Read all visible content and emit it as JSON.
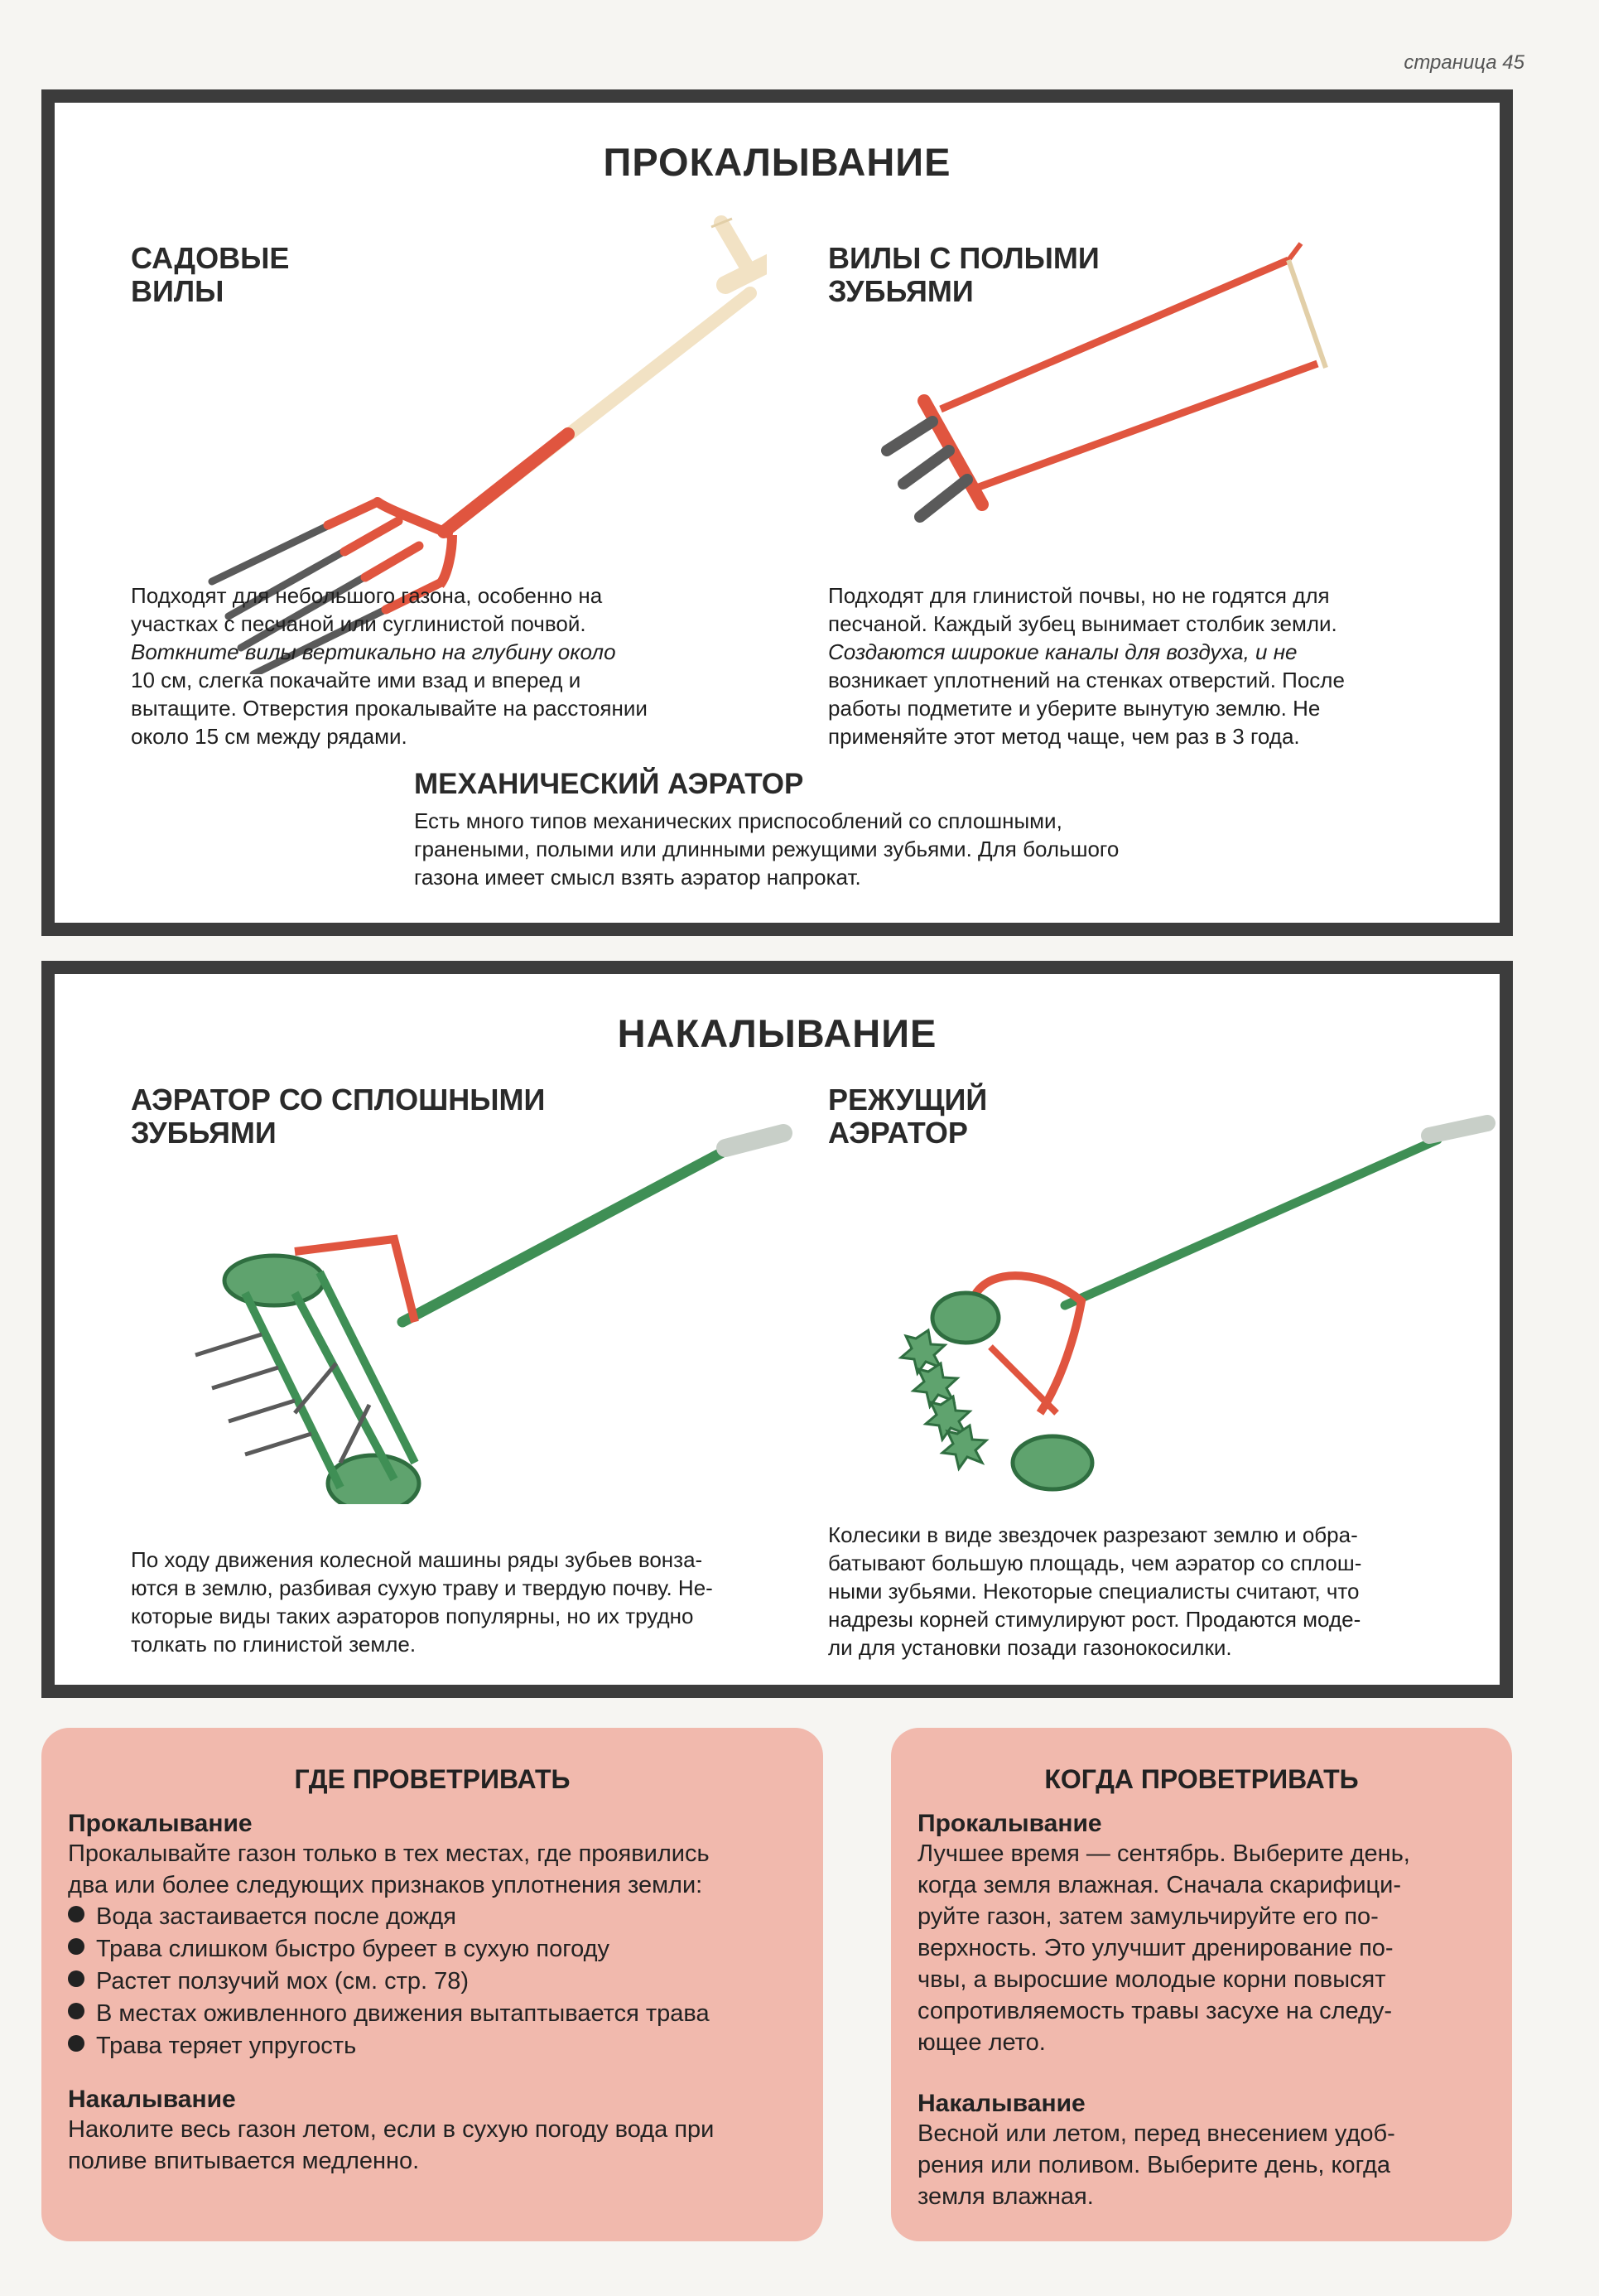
{
  "page_number": "страница 45",
  "piercing": {
    "title": "ПРОКАЛЫВАНИЕ",
    "garden_fork": {
      "title_line1": "САДОВЫЕ",
      "title_line2": "ВИЛЫ",
      "lines": [
        "Подходят для небольшого газона, особенно на",
        "участках с песчаной или суглинистой почвой.",
        "Воткните вилы вертикально на глубину около",
        "10 см, слегка покачайте ими взад и вперед и",
        "вытащите. Отверстия прокалывайте на расстоянии",
        "около 15 см между рядами."
      ]
    },
    "hollow_fork": {
      "title_line1": "ВИЛЫ С ПОЛЫМИ",
      "title_line2": "ЗУБЬЯМИ",
      "lines": [
        "Подходят для глинистой почвы, но не годятся для",
        "песчаной. Каждый зубец вынимает столбик земли.",
        "Создаются широкие каналы для воздуха, и не",
        "возникает уплотнений на стенках отверстий. После",
        "работы подметите и уберите вынутую землю. Не",
        "применяйте этот метод чаще, чем раз в 3 года."
      ]
    },
    "mechanical": {
      "title": "МЕХАНИЧЕСКИЙ АЭРАТОР",
      "lines": [
        "Есть много типов механических приспособлений со сплошными,",
        "гранеными, полыми или длинными режущими зубьями. Для большого",
        "газона имеет смысл взять аэратор напрокат."
      ]
    }
  },
  "spiking": {
    "title": "НАКАЛЫВАНИЕ",
    "solid_aerator": {
      "title_line1": "АЭРАТОР СО СПЛОШНЫМИ",
      "title_line2": "ЗУБЬЯМИ",
      "lines": [
        "По ходу движения колесной машины ряды зубьев вонза-",
        "ются в землю, разбивая сухую траву и твердую почву. Не-",
        "которые виды таких аэраторов популярны, но их трудно",
        "толкать по глинистой земле."
      ]
    },
    "cutting_aerator": {
      "title_line1": "РЕЖУЩИЙ",
      "title_line2": "АЭРАТОР",
      "lines": [
        "Колесики в виде звездочек разрезают землю и обра-",
        "батывают большую площадь, чем аэратор со сплош-",
        "ными зубьями. Некоторые специалисты считают, что",
        "надрезы корней стимулируют рост. Продаются моде-",
        "ли для установки позади газонокосилки."
      ]
    }
  },
  "where": {
    "title": "ГДЕ ПРОВЕТРИВАТЬ",
    "sub1": "Прокалывание",
    "text1_lines": [
      "Прокалывайте газон только в тех местах, где проявились",
      "два или более следующих признаков уплотнения земли:"
    ],
    "bullets": [
      "Вода застаивается после дождя",
      "Трава слишком быстро буреет в сухую погоду",
      "Растет ползучий мох (см. стр. 78)",
      "В местах оживленного движения вытаптывается трава",
      "Трава теряет упругость"
    ],
    "sub2": "Накалывание",
    "text2_lines": [
      "Наколите весь газон летом, если в сухую погоду вода при",
      "поливе впитывается медленно."
    ]
  },
  "when": {
    "title": "КОГДА ПРОВЕТРИВАТЬ",
    "sub1": "Прокалывание",
    "text1_lines": [
      "Лучшее время — сентябрь. Выберите день,",
      "когда земля влажная. Сначала скарифици-",
      "руйте газон, затем замульчируйте его по-",
      "верхность. Это улучшит дренирование по-",
      "чвы, а выросшие молодые корни повысят",
      "сопротивляемость травы засухе на следу-",
      "ющее лето."
    ],
    "sub2": "Накалывание",
    "text2_lines": [
      "Весной или летом, перед внесением удоб-",
      "рения или поливом. Выберите день, когда",
      "земля влажная."
    ]
  },
  "colors": {
    "frame": "#3c3c3c",
    "info_bg": "#f1b9ad",
    "tool_red": "#e0553f",
    "tool_green": "#3f8f55",
    "tine_gray": "#5a5a5a",
    "handle_wood": "#f2e2c4"
  },
  "icons": [
    "garden-fork-icon",
    "hollow-tine-fork-icon",
    "solid-tine-aerator-icon",
    "cutting-aerator-icon"
  ]
}
